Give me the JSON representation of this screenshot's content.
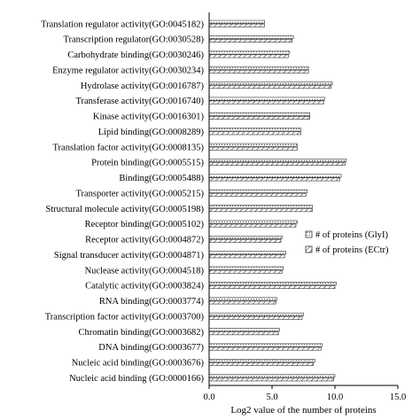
{
  "chart_data": {
    "type": "bar",
    "orientation": "horizontal",
    "title": "",
    "xlabel": "Log2 value of the number of proteins",
    "ylabel": "",
    "xlim": [
      0,
      15
    ],
    "xticks": [
      "0.0",
      "5.0",
      "10.0",
      "15.0"
    ],
    "grid": false,
    "legend_position": "right",
    "categories": [
      "Translation regulator activity(GO:0045182)",
      "Transcription regulator(GO:0030528)",
      "Carbohydrate binding(GO:0030246)",
      "Enzyme regulator activity(GO:0030234)",
      "Hydrolase activity(GO:0016787)",
      "Transferase activity(GO:0016740)",
      "Kinase activity(GO:0016301)",
      "Lipid binding(GO:0008289)",
      "Translation factor activity(GO:0008135)",
      "Protein binding(GO:0005515)",
      "Binding(GO:0005488)",
      "Transporter activity(GO:0005215)",
      "Structural molecule activity(GO:0005198)",
      "Receptor binding(GO:0005102)",
      "Receptor activity(GO:0004872)",
      "Signal transducer activity(GO:0004871)",
      "Nuclease activity(GO:0004518)",
      "Catalytic activity(GO:0003824)",
      "RNA binding(GO:0003774)",
      "Transcription factor activity(GO:0003700)",
      "Chromatin binding(GO:0003682)",
      "DNA binding(GO:0003677)",
      "Nucleic acid binding(GO:0003676)",
      "Nucleic acid binding (GO:0000166)"
    ],
    "series": [
      {
        "name": "# of proteins (GlyI)",
        "pattern": "dots",
        "values": [
          4.4,
          6.7,
          6.4,
          7.9,
          9.8,
          9.2,
          8.0,
          7.3,
          7.0,
          10.9,
          10.5,
          7.8,
          8.2,
          7.0,
          5.8,
          6.1,
          5.9,
          10.1,
          5.4,
          7.5,
          5.6,
          9.0,
          8.4,
          10.0
        ]
      },
      {
        "name": "# of proteins (ECtr)",
        "pattern": "hatch",
        "values": [
          4.4,
          6.6,
          6.3,
          7.9,
          9.7,
          9.1,
          8.0,
          7.3,
          7.0,
          10.8,
          10.4,
          7.7,
          8.2,
          6.9,
          5.7,
          6.0,
          5.8,
          10.0,
          5.3,
          7.4,
          5.5,
          8.9,
          8.3,
          9.9
        ]
      }
    ]
  }
}
